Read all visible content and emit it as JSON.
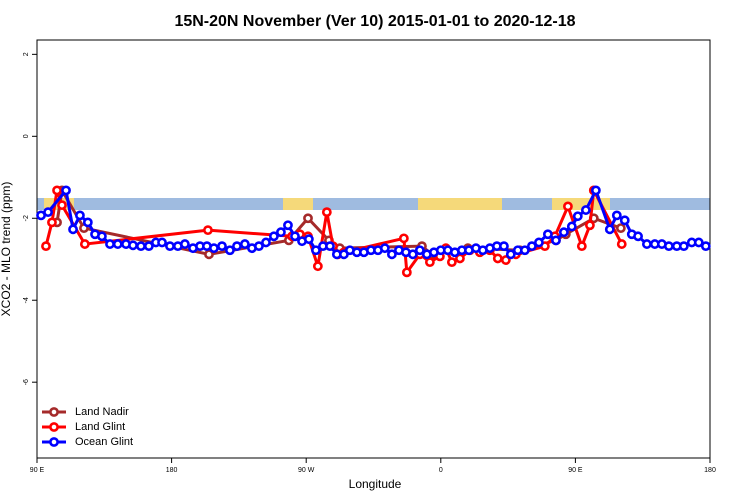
{
  "chart_data": {
    "type": "line",
    "title": "15N-20N November (Ver 10)   2015-01-01 to 2020-12-18",
    "xlabel": "Longitude",
    "ylabel": "XCO2 - MLO trend (ppm)",
    "xlim": [
      90,
      540
    ],
    "ylim": [
      -7.85,
      2.35
    ],
    "xticks": [
      {
        "value": 90,
        "label": "90 E"
      },
      180,
      {
        "value": 270,
        "label": "90 W"
      },
      {
        "value": 360,
        "label": "0"
      },
      {
        "value": 450,
        "label": "90 E"
      },
      {
        "value": 540,
        "label": "180"
      }
    ],
    "yticks": [
      -6,
      -4,
      -2,
      0,
      2
    ],
    "legend": "bottom-left",
    "series": [
      {
        "name": "Land Nadir",
        "color": "#a52a2a",
        "x": [
          103.4,
          106.7,
          121.4,
          205,
          258.4,
          271.2,
          285.2,
          292.5,
          347.4,
          354,
          378.1,
          412.9,
          437,
          443.6,
          462.3,
          480.4
        ],
        "values": [
          -2.1,
          -1.32,
          -2.24,
          -2.88,
          -2.54,
          -2.0,
          -2.54,
          -2.73,
          -2.68,
          -2.88,
          -2.73,
          -2.78,
          -2.54,
          -2.39,
          -2.0,
          -2.24
        ]
      },
      {
        "name": "Land Glint",
        "color": "#ff0000",
        "x": [
          96,
          100,
          103.4,
          106.7,
          122,
          204.3,
          260.5,
          265.8,
          271.2,
          277.8,
          283.8,
          287.9,
          291.2,
          295.2,
          335.3,
          337.3,
          346,
          352.7,
          359.4,
          363.4,
          367.4,
          372.8,
          379.4,
          386.1,
          392.8,
          398.1,
          403.5,
          410.2,
          429.6,
          436.3,
          445,
          454.3,
          459.7,
          462.3,
          481
        ],
        "values": [
          -2.68,
          -2.1,
          -1.32,
          -1.68,
          -2.63,
          -2.29,
          -2.44,
          -2.39,
          -2.44,
          -3.17,
          -1.85,
          -2.68,
          -2.88,
          -2.83,
          -2.49,
          -3.32,
          -2.88,
          -3.07,
          -2.93,
          -2.73,
          -3.07,
          -2.98,
          -2.78,
          -2.83,
          -2.78,
          -2.98,
          -3.02,
          -2.88,
          -2.68,
          -2.44,
          -1.71,
          -2.68,
          -2.17,
          -1.32,
          -2.63
        ]
      },
      {
        "name": "Ocean Glint",
        "color": "#0000ff",
        "x": [
          92.7,
          97.4,
          109.4,
          114.1,
          118.7,
          124,
          128.8,
          133.4,
          138.8,
          144,
          149.5,
          154.2,
          159.5,
          164.8,
          169.5,
          173.6,
          178.9,
          184.2,
          188.9,
          194.3,
          199,
          203.6,
          208.3,
          213.7,
          219,
          223.7,
          229,
          233.7,
          238.4,
          243.1,
          248.4,
          253.1,
          257.8,
          262.5,
          267.2,
          271.8,
          276.5,
          281.2,
          285.9,
          290.5,
          295.2,
          299.2,
          303.9,
          308.6,
          313.3,
          318,
          322.6,
          327.3,
          332,
          336.7,
          341.3,
          346,
          350.7,
          355.4,
          360,
          364.7,
          369.4,
          374.1,
          378.8,
          383.5,
          388.1,
          392.8,
          397.5,
          402.2,
          406.8,
          411.5,
          416.2,
          420.9,
          425.6,
          431.6,
          437,
          442.3,
          447.6,
          451.6,
          457,
          463.7,
          473,
          477.7,
          483,
          487.7,
          491.9,
          497.8,
          503.1,
          507.8,
          512.5,
          517.8,
          522.5,
          527.8,
          532.5,
          537.2
        ],
        "values": [
          -1.93,
          -1.85,
          -1.32,
          -2.27,
          -1.93,
          -2.1,
          -2.39,
          -2.44,
          -2.63,
          -2.63,
          -2.63,
          -2.66,
          -2.68,
          -2.68,
          -2.59,
          -2.59,
          -2.68,
          -2.68,
          -2.63,
          -2.73,
          -2.68,
          -2.68,
          -2.73,
          -2.68,
          -2.78,
          -2.68,
          -2.63,
          -2.73,
          -2.68,
          -2.59,
          -2.44,
          -2.34,
          -2.17,
          -2.44,
          -2.56,
          -2.51,
          -2.78,
          -2.68,
          -2.68,
          -2.88,
          -2.88,
          -2.78,
          -2.83,
          -2.83,
          -2.78,
          -2.78,
          -2.73,
          -2.88,
          -2.78,
          -2.83,
          -2.88,
          -2.78,
          -2.88,
          -2.83,
          -2.78,
          -2.78,
          -2.83,
          -2.78,
          -2.78,
          -2.73,
          -2.78,
          -2.73,
          -2.68,
          -2.68,
          -2.88,
          -2.78,
          -2.78,
          -2.68,
          -2.59,
          -2.39,
          -2.54,
          -2.34,
          -2.2,
          -1.95,
          -1.8,
          -1.32,
          -2.27,
          -1.93,
          -2.05,
          -2.39,
          -2.44,
          -2.63,
          -2.63,
          -2.63,
          -2.68,
          -2.68,
          -2.68,
          -2.59,
          -2.59,
          -2.68
        ]
      }
    ]
  }
}
